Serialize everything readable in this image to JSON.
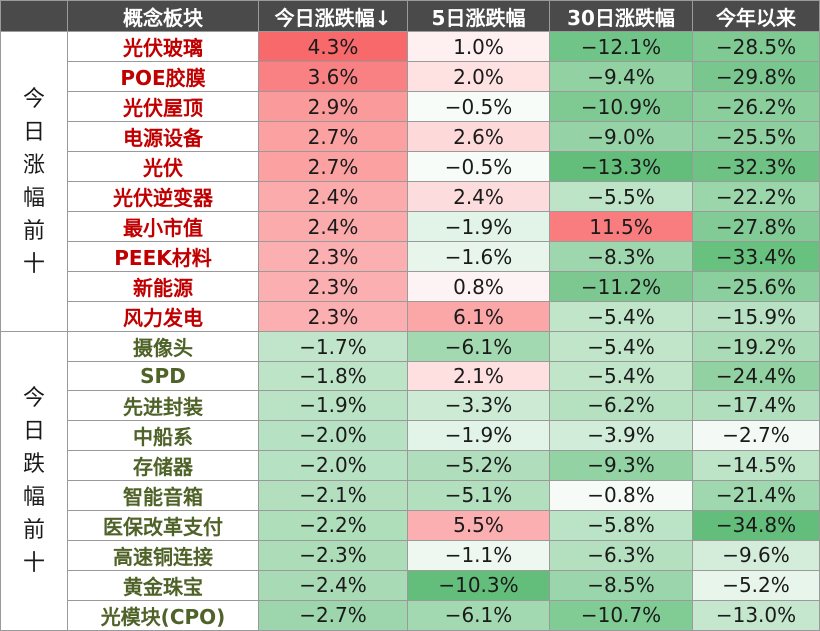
{
  "chart_data": {
    "type": "table",
    "columns": [
      "概念板块",
      "今日涨跌幅↓",
      "5日涨跌幅",
      "30日涨跌幅",
      "今年以来"
    ],
    "groups": [
      {
        "label": "今日涨幅前十",
        "name_color": "#c00000",
        "rows": [
          {
            "name": "光伏玻璃",
            "values": [
              "4.3%",
              "1.0%",
              "−12.1%",
              "−28.5%"
            ],
            "nums": [
              4.3,
              1.0,
              -12.1,
              -28.5
            ]
          },
          {
            "name": "POE胶膜",
            "values": [
              "3.6%",
              "2.0%",
              "−9.4%",
              "−29.8%"
            ],
            "nums": [
              3.6,
              2.0,
              -9.4,
              -29.8
            ]
          },
          {
            "name": "光伏屋顶",
            "values": [
              "2.9%",
              "−0.5%",
              "−10.9%",
              "−26.2%"
            ],
            "nums": [
              2.9,
              -0.5,
              -10.9,
              -26.2
            ]
          },
          {
            "name": "电源设备",
            "values": [
              "2.7%",
              "2.6%",
              "−9.0%",
              "−25.5%"
            ],
            "nums": [
              2.7,
              2.6,
              -9.0,
              -25.5
            ]
          },
          {
            "name": "光伏",
            "values": [
              "2.7%",
              "−0.5%",
              "−13.3%",
              "−32.3%"
            ],
            "nums": [
              2.7,
              -0.5,
              -13.3,
              -32.3
            ]
          },
          {
            "name": "光伏逆变器",
            "values": [
              "2.4%",
              "2.4%",
              "−5.5%",
              "−22.2%"
            ],
            "nums": [
              2.4,
              2.4,
              -5.5,
              -22.2
            ]
          },
          {
            "name": "最小市值",
            "values": [
              "2.4%",
              "−1.9%",
              "11.5%",
              "−27.8%"
            ],
            "nums": [
              2.4,
              -1.9,
              11.5,
              -27.8
            ]
          },
          {
            "name": "PEEK材料",
            "values": [
              "2.3%",
              "−1.6%",
              "−8.3%",
              "−33.4%"
            ],
            "nums": [
              2.3,
              -1.6,
              -8.3,
              -33.4
            ]
          },
          {
            "name": "新能源",
            "values": [
              "2.3%",
              "0.8%",
              "−11.2%",
              "−25.6%"
            ],
            "nums": [
              2.3,
              0.8,
              -11.2,
              -25.6
            ]
          },
          {
            "name": "风力发电",
            "values": [
              "2.3%",
              "6.1%",
              "−5.4%",
              "−15.9%"
            ],
            "nums": [
              2.3,
              6.1,
              -5.4,
              -15.9
            ]
          }
        ]
      },
      {
        "label": "今日跌幅前十",
        "name_color": "#4f6228",
        "rows": [
          {
            "name": "摄像头",
            "values": [
              "−1.7%",
              "−6.1%",
              "−5.4%",
              "−19.2%"
            ],
            "nums": [
              -1.7,
              -6.1,
              -5.4,
              -19.2
            ]
          },
          {
            "name": "SPD",
            "values": [
              "−1.8%",
              "2.1%",
              "−5.4%",
              "−24.4%"
            ],
            "nums": [
              -1.8,
              2.1,
              -5.4,
              -24.4
            ]
          },
          {
            "name": "先进封装",
            "values": [
              "−1.9%",
              "−3.3%",
              "−6.2%",
              "−17.4%"
            ],
            "nums": [
              -1.9,
              -3.3,
              -6.2,
              -17.4
            ]
          },
          {
            "name": "中船系",
            "values": [
              "−2.0%",
              "−1.9%",
              "−3.9%",
              "−2.7%"
            ],
            "nums": [
              -2.0,
              -1.9,
              -3.9,
              -2.7
            ]
          },
          {
            "name": "存储器",
            "values": [
              "−2.0%",
              "−5.2%",
              "−9.3%",
              "−14.5%"
            ],
            "nums": [
              -2.0,
              -5.2,
              -9.3,
              -14.5
            ]
          },
          {
            "name": "智能音箱",
            "values": [
              "−2.1%",
              "−5.1%",
              "−0.8%",
              "−21.4%"
            ],
            "nums": [
              -2.1,
              -5.1,
              -0.8,
              -21.4
            ]
          },
          {
            "name": "医保改革支付",
            "values": [
              "−2.2%",
              "5.5%",
              "−5.8%",
              "−34.8%"
            ],
            "nums": [
              -2.2,
              5.5,
              -5.8,
              -34.8
            ]
          },
          {
            "name": "高速铜连接",
            "values": [
              "−2.3%",
              "−1.1%",
              "−6.3%",
              "−9.6%"
            ],
            "nums": [
              -2.3,
              -1.1,
              -6.3,
              -9.6
            ]
          },
          {
            "name": "黄金珠宝",
            "values": [
              "−2.4%",
              "−10.3%",
              "−8.5%",
              "−5.2%"
            ],
            "nums": [
              -2.4,
              -10.3,
              -8.5,
              -5.2
            ]
          },
          {
            "name": "光模块(CPO)",
            "values": [
              "−2.7%",
              "−6.1%",
              "−10.7%",
              "−13.0%"
            ],
            "nums": [
              -2.7,
              -6.1,
              -10.7,
              -13.0
            ]
          }
        ]
      }
    ],
    "colors": {
      "header_bg": "#4a4a4a",
      "header_text": "#ffffff",
      "positive": "#f8696b",
      "negative": "#63be7b"
    }
  }
}
